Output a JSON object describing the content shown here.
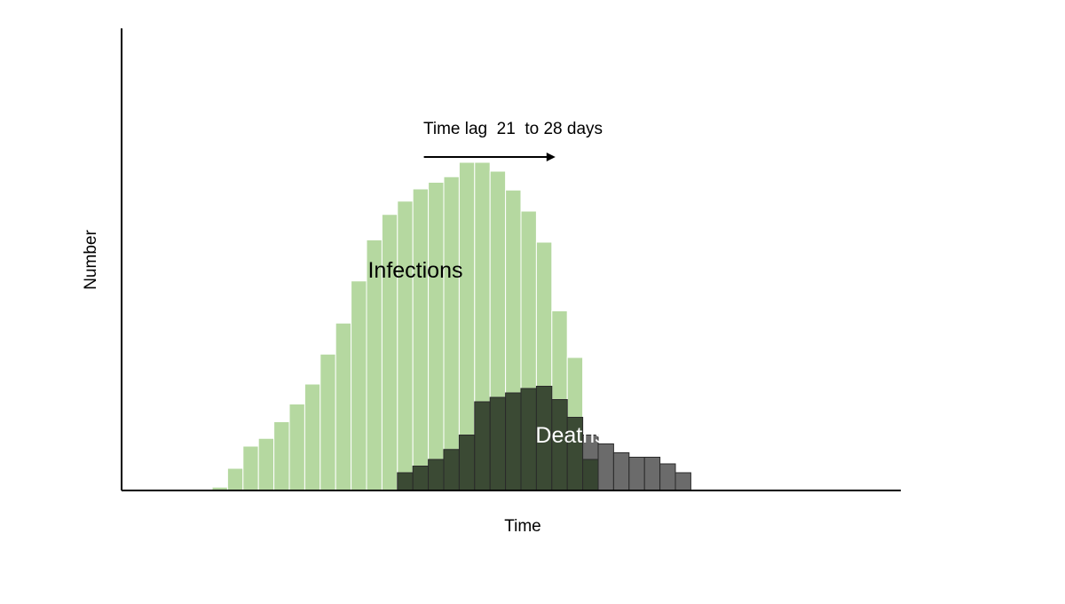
{
  "chart_data": {
    "type": "bar",
    "xlabel": "Time",
    "ylabel": "Number",
    "axes": {
      "x_ticks": false,
      "y_ticks": false,
      "grid": false
    },
    "series": [
      {
        "name": "Infections",
        "color": "#b5d8a0",
        "start_bin": 0,
        "values": [
          3,
          20,
          40,
          47,
          62,
          78,
          96,
          123,
          151,
          189,
          226,
          249,
          261,
          272,
          278,
          283,
          296,
          296,
          288,
          271,
          252,
          224,
          162,
          120,
          28
        ]
      },
      {
        "name": "Deaths",
        "color": "#3b4a34",
        "start_bin": 12,
        "values": [
          16,
          22,
          28,
          37,
          50,
          80,
          84,
          88,
          92,
          94,
          82,
          66,
          50,
          42,
          34,
          30,
          30,
          24,
          16
        ]
      }
    ],
    "overlap_color": "#374531",
    "deaths_tail_color": "#6b6b6b",
    "annotation": {
      "text": "Time lag  21  to 28 days",
      "arrow_from_bin": 14,
      "arrow_to_bin": 22
    }
  }
}
